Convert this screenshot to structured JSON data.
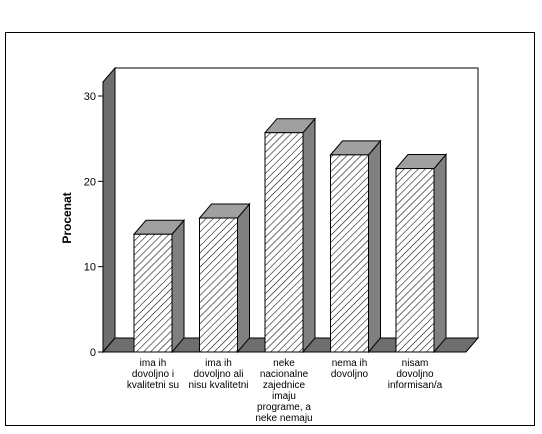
{
  "chart_data": {
    "type": "bar",
    "categories": [
      [
        "ima ih",
        "dovoljno i",
        "kvalitetni su"
      ],
      [
        "ima ih",
        "dovoljno ali",
        "nisu kvalitetni"
      ],
      [
        "neke",
        "nacionalne",
        "zajednice",
        "imaju",
        "programe, a",
        "neke nemaju"
      ],
      [
        "nema ih",
        "dovoljno"
      ],
      [
        "nisam",
        "dovoljno",
        "informisan/a"
      ]
    ],
    "values": [
      13.8,
      15.7,
      25.7,
      23.1,
      21.5
    ],
    "ylabel": "Procenat",
    "xlabel": "",
    "ylim": [
      0,
      30
    ],
    "yticks": [
      0,
      10,
      20,
      30
    ],
    "style": "3d-hatched",
    "colors": {
      "bar_face": "#ffffff",
      "bar_hatch": "#000000",
      "bar_side": "#808080",
      "bar_top": "#a0a0a0",
      "back_wall": "#ffffff",
      "left_wall": "#6e6e6e",
      "floor": "#6e6e6e"
    }
  }
}
